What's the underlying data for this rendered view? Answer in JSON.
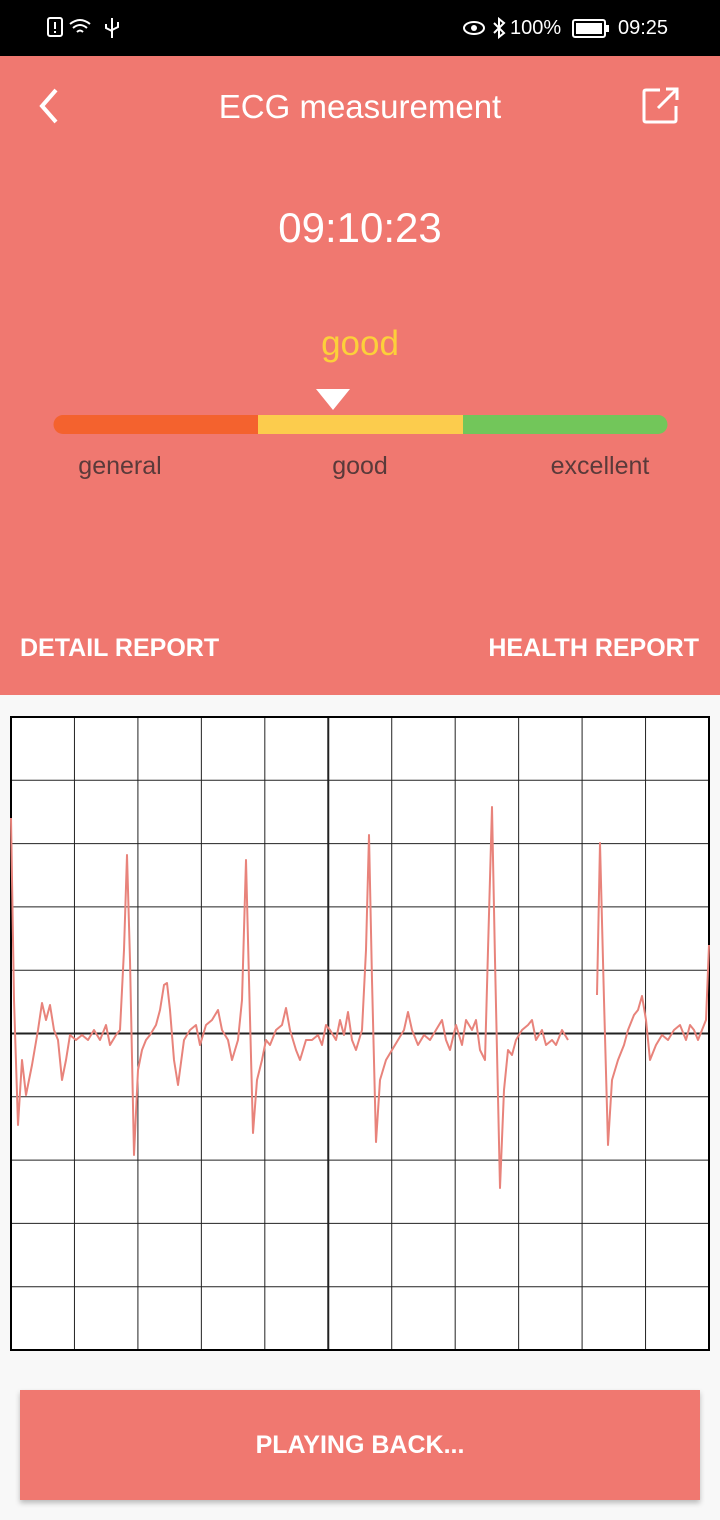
{
  "status_bar": {
    "battery": "100%",
    "time": "09:25"
  },
  "header": {
    "title": "ECG measurement",
    "measured_time": "09:10:23"
  },
  "rating": {
    "current": "good",
    "levels": [
      "general",
      "good",
      "excellent"
    ]
  },
  "tabs": [
    "DETAIL REPORT",
    "HEALTH REPORT"
  ],
  "button": {
    "label": "PLAYING BACK..."
  }
}
